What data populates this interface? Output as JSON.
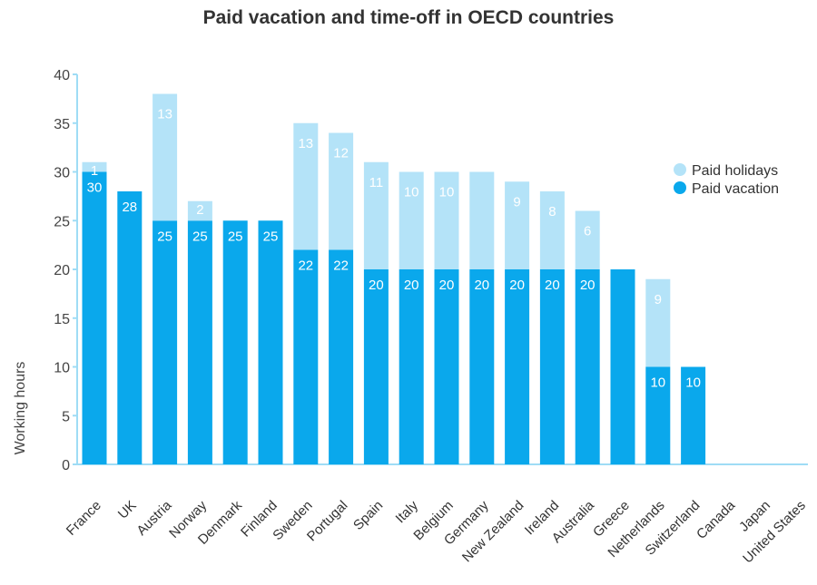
{
  "chart_data": {
    "type": "bar",
    "title": "Paid vacation and time-off in OECD countries",
    "xlabel": "",
    "ylabel": "Working hours",
    "ylim": [
      0,
      40
    ],
    "yticks": [
      "0",
      "5",
      "10",
      "15",
      "20",
      "25",
      "30",
      "35",
      "40"
    ],
    "stacked": true,
    "grid": false,
    "legend_position": "right",
    "categories": [
      "France",
      "UK",
      "Austria",
      "Norway",
      "Denmark",
      "Finland",
      "Sweden",
      "Portugal",
      "Spain",
      "Italy",
      "Belgium",
      "Germany",
      "New Zealand",
      "Ireland",
      "Australia",
      "Greece",
      "Netherlands",
      "Switzerland",
      "Canada",
      "Japan",
      "United States"
    ],
    "series": [
      {
        "name": "Paid vacation",
        "color": "#0aa8ec",
        "values": [
          30,
          28,
          25,
          25,
          25,
          25,
          22,
          22,
          20,
          20,
          20,
          20,
          20,
          20,
          20,
          20,
          10,
          10,
          0,
          null,
          null
        ],
        "labels": [
          "30",
          "28",
          "25",
          "25",
          "25",
          "25",
          "22",
          "22",
          "20",
          "20",
          "20",
          "20",
          "20",
          "20",
          "20",
          "",
          "10",
          "10",
          "0",
          "",
          ""
        ]
      },
      {
        "name": "Paid holidays",
        "color": "#b4e3f8",
        "values": [
          1,
          0,
          13,
          2,
          0,
          0,
          13,
          12,
          11,
          10,
          10,
          10,
          9,
          8,
          6,
          0,
          9,
          0,
          0,
          null,
          null
        ],
        "labels": [
          "1",
          "",
          "13",
          "2",
          "",
          "",
          "13",
          "12",
          "11",
          "10",
          "10",
          "",
          "9",
          "8",
          "6",
          "",
          "9",
          "",
          "",
          "",
          ""
        ]
      }
    ],
    "label_color": "#ffffff",
    "zero_label_color": "#0aa8ec",
    "axis_color": "#9fdcf5"
  }
}
